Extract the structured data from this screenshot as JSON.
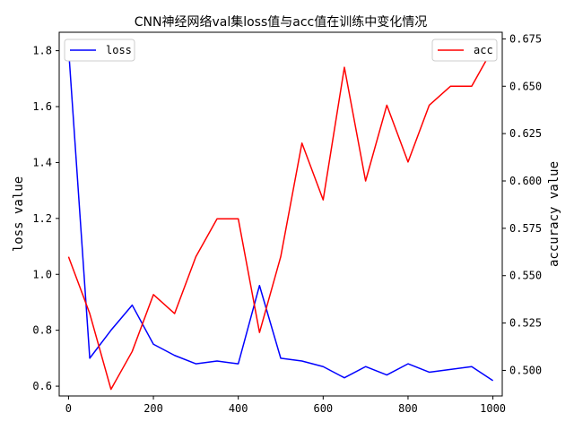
{
  "chart_data": {
    "type": "line",
    "title": "CNN神经网络val集loss值与acc值在训练中变化情况",
    "xlabel": "",
    "ylabel_left": "loss value",
    "ylabel_right": "accuracy value",
    "x": [
      0,
      50,
      100,
      150,
      200,
      250,
      300,
      350,
      400,
      450,
      500,
      550,
      600,
      650,
      700,
      750,
      800,
      850,
      900,
      950,
      1000
    ],
    "xlim": [
      -22,
      1022
    ],
    "xticks": [
      0,
      200,
      400,
      600,
      800,
      1000
    ],
    "y_left_lim": [
      0.565,
      1.866
    ],
    "y_left_ticks": [
      0.6,
      0.8,
      1.0,
      1.2,
      1.4,
      1.6,
      1.8
    ],
    "y_left_tick_labels": [
      "0.6",
      "0.8",
      "1.0",
      "1.2",
      "1.4",
      "1.6",
      "1.8"
    ],
    "y_right_lim": [
      0.4865,
      0.6785
    ],
    "y_right_ticks": [
      0.5,
      0.525,
      0.55,
      0.575,
      0.6,
      0.625,
      0.65,
      0.675
    ],
    "y_right_tick_labels": [
      "0.500",
      "0.525",
      "0.550",
      "0.575",
      "0.600",
      "0.625",
      "0.650",
      "0.675"
    ],
    "grid": false,
    "series": [
      {
        "name": "loss",
        "axis": "left",
        "color": "#0000ff",
        "legend_position": "top-left",
        "values": [
          1.81,
          0.7,
          0.8,
          0.89,
          0.75,
          0.71,
          0.68,
          0.69,
          0.68,
          0.96,
          0.7,
          0.69,
          0.67,
          0.63,
          0.67,
          0.64,
          0.68,
          0.65,
          0.66,
          0.67,
          0.62
        ]
      },
      {
        "name": "acc",
        "axis": "right",
        "color": "#ff0000",
        "legend_position": "top-right",
        "values": [
          0.56,
          0.53,
          0.49,
          0.51,
          0.54,
          0.53,
          0.56,
          0.58,
          0.58,
          0.52,
          0.56,
          0.62,
          0.59,
          0.66,
          0.6,
          0.64,
          0.61,
          0.64,
          0.65,
          0.65,
          0.67
        ]
      }
    ]
  }
}
